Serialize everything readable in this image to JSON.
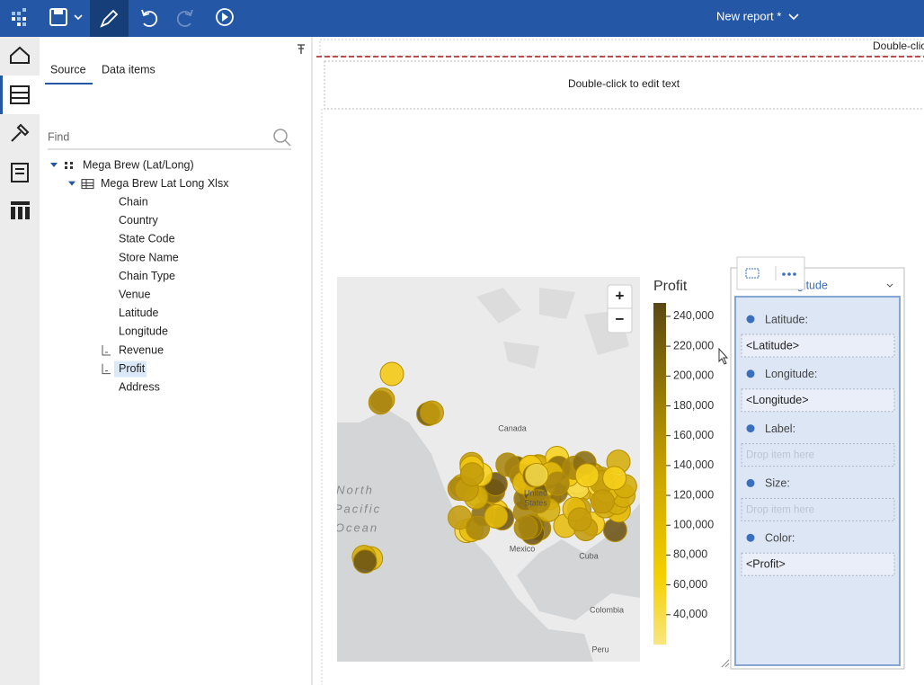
{
  "toolbar": {
    "report_title": "New report *"
  },
  "source_panel": {
    "tabs": [
      "Source",
      "Data items"
    ],
    "search_placeholder": "Find",
    "tree": [
      {
        "label": "Mega Brew (Lat/Long)",
        "level": 0,
        "expanded": true
      },
      {
        "label": "Mega Brew Lat Long Xlsx",
        "level": 1,
        "expanded": true
      },
      {
        "label": "Chain",
        "level": 2
      },
      {
        "label": "Country",
        "level": 2
      },
      {
        "label": "State Code",
        "level": 2
      },
      {
        "label": "Store Name",
        "level": 2
      },
      {
        "label": "Chain Type",
        "level": 2
      },
      {
        "label": "Venue",
        "level": 2
      },
      {
        "label": "Latitude",
        "level": 2
      },
      {
        "label": "Longitude",
        "level": 2
      },
      {
        "label": "Revenue",
        "level": 2,
        "measure": true
      },
      {
        "label": "Profit",
        "level": 2,
        "measure": true,
        "selected": true
      },
      {
        "label": "Address",
        "level": 2
      }
    ]
  },
  "canvas": {
    "top_text": "Double-clic",
    "header_text": "Double-click to edit text"
  },
  "map": {
    "zoom_buttons": [
      "+",
      "−"
    ],
    "labels": [
      "Canada",
      "United",
      "States",
      "Mexico",
      "Cuba",
      "Colombia",
      "Peru",
      "North",
      "Pacific",
      "Ocean"
    ],
    "legend": {
      "title": "Profit",
      "range": [
        20000,
        249000
      ],
      "ticks": [
        {
          "value": 240000,
          "label": "240,000"
        },
        {
          "value": 220000,
          "label": "220,000"
        },
        {
          "value": 200000,
          "label": "200,000"
        },
        {
          "value": 180000,
          "label": "180,000"
        },
        {
          "value": 160000,
          "label": "160,000"
        },
        {
          "value": 140000,
          "label": "140,000"
        },
        {
          "value": 120000,
          "label": "120,000"
        },
        {
          "value": 100000,
          "label": "100,000"
        },
        {
          "value": 80000,
          "label": "80,000"
        },
        {
          "value": 60000,
          "label": "60,000"
        },
        {
          "value": 40000,
          "label": "40,000"
        }
      ]
    }
  },
  "properties": {
    "dropdown": "Longitude",
    "fields": [
      {
        "label": "Latitude:",
        "value": "<Latitude>"
      },
      {
        "label": "Longitude:",
        "value": "<Longitude>"
      },
      {
        "label": "Label:",
        "placeholder": "Drop item here"
      },
      {
        "label": "Size:",
        "placeholder": "Drop item here"
      },
      {
        "label": "Color:",
        "value": "<Profit>"
      }
    ]
  }
}
